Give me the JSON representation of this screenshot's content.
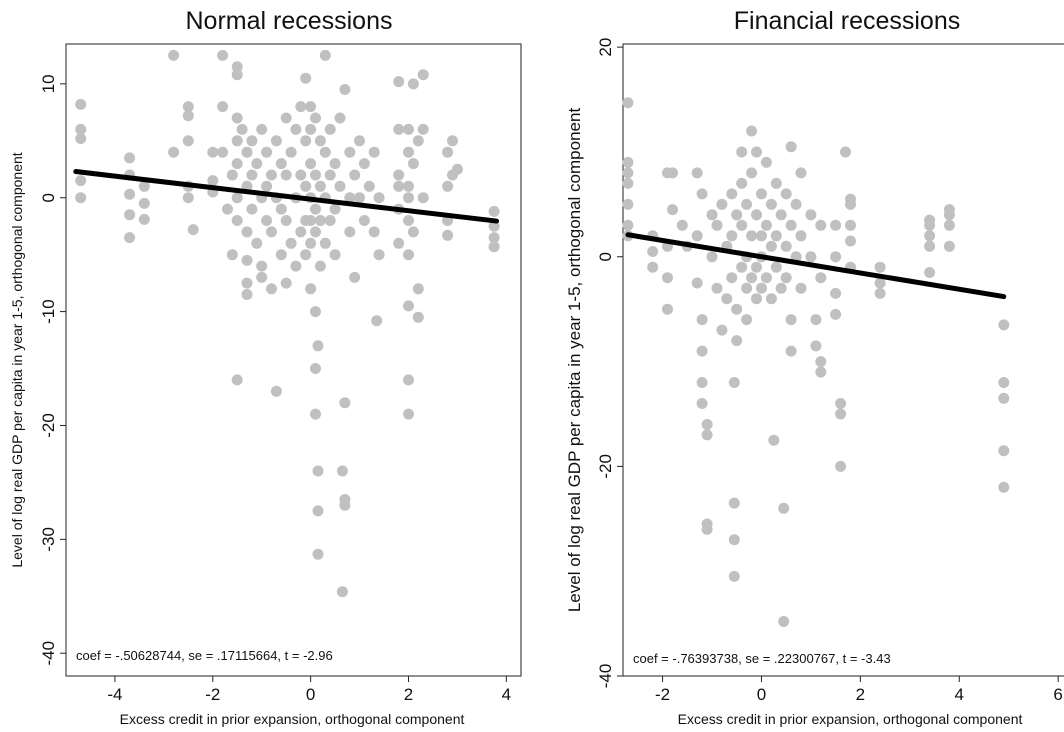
{
  "chart_data": [
    {
      "type": "scatter",
      "title": "Normal recessions",
      "xlabel": "Excess credit in prior expansion, orthogonal component",
      "ylabel": "Level of log real GDP per capita in year 1-5, orthogonal component",
      "xlim": [
        -5,
        4.3
      ],
      "ylim": [
        -42,
        13.5
      ],
      "xticks": [
        "-4",
        "-2",
        "0",
        "2",
        "4"
      ],
      "yticks": [
        "10",
        "0",
        "-10",
        "-20",
        "-30",
        "-40"
      ],
      "grid": false,
      "marker_color": "#c0c0c0",
      "fit_color": "#000000",
      "annotation": "coef = -.50628744, se = .17115664, t = -2.96",
      "fit_line": [
        [
          -4.8,
          2.3
        ],
        [
          3.8,
          -2.05
        ]
      ],
      "points": [
        [
          -4.7,
          8.2
        ],
        [
          -4.7,
          6
        ],
        [
          -4.7,
          5.2
        ],
        [
          -4.7,
          1.5
        ],
        [
          -4.7,
          0.0
        ],
        [
          -3.7,
          3.5
        ],
        [
          -3.7,
          2
        ],
        [
          -3.7,
          0.3
        ],
        [
          -3.7,
          -1.5
        ],
        [
          -3.7,
          -3.5
        ],
        [
          -3.4,
          1
        ],
        [
          -3.4,
          -0.5
        ],
        [
          -3.4,
          -1.9
        ],
        [
          -2.8,
          12.5
        ],
        [
          -2.8,
          4.0
        ],
        [
          -2.5,
          8
        ],
        [
          -2.5,
          7.2
        ],
        [
          -2.5,
          5
        ],
        [
          -2.5,
          1
        ],
        [
          -2.5,
          0
        ],
        [
          -2.4,
          -2.8
        ],
        [
          -2,
          4
        ],
        [
          -2,
          1.5
        ],
        [
          -2,
          0.5
        ],
        [
          -1.8,
          12.5
        ],
        [
          -1.8,
          8
        ],
        [
          -1.8,
          4
        ],
        [
          -1.7,
          -1
        ],
        [
          -1.6,
          2
        ],
        [
          -1.6,
          -5
        ],
        [
          -1.5,
          11.5
        ],
        [
          -1.5,
          10.8
        ],
        [
          -1.5,
          7
        ],
        [
          -1.5,
          5
        ],
        [
          -1.5,
          3
        ],
        [
          -1.5,
          0
        ],
        [
          -1.5,
          -2
        ],
        [
          -1.5,
          -16
        ],
        [
          -1.4,
          6
        ],
        [
          -1.3,
          4
        ],
        [
          -1.3,
          1
        ],
        [
          -1.3,
          -3
        ],
        [
          -1.3,
          -5.5
        ],
        [
          -1.3,
          -7.5
        ],
        [
          -1.3,
          -8.5
        ],
        [
          -1.2,
          5
        ],
        [
          -1.2,
          2
        ],
        [
          -1.2,
          -1
        ],
        [
          -1.1,
          3
        ],
        [
          -1.1,
          -4
        ],
        [
          -1.0,
          6
        ],
        [
          -1.0,
          0
        ],
        [
          -1.0,
          -6
        ],
        [
          -1.0,
          -7
        ],
        [
          -0.9,
          4
        ],
        [
          -0.9,
          1
        ],
        [
          -0.9,
          -2
        ],
        [
          -0.8,
          2
        ],
        [
          -0.8,
          -3
        ],
        [
          -0.8,
          -8
        ],
        [
          -0.7,
          5
        ],
        [
          -0.7,
          0
        ],
        [
          -0.7,
          -17
        ],
        [
          -0.6,
          3
        ],
        [
          -0.6,
          -1
        ],
        [
          -0.6,
          -5
        ],
        [
          -0.5,
          7
        ],
        [
          -0.5,
          2
        ],
        [
          -0.5,
          -2
        ],
        [
          -0.5,
          -7.5
        ],
        [
          -0.4,
          4
        ],
        [
          -0.4,
          -4
        ],
        [
          -0.3,
          6
        ],
        [
          -0.3,
          0
        ],
        [
          -0.3,
          -6
        ],
        [
          -0.2,
          8
        ],
        [
          -0.2,
          2
        ],
        [
          -0.2,
          -3
        ],
        [
          -0.1,
          10.5
        ],
        [
          -0.1,
          5
        ],
        [
          -0.1,
          1
        ],
        [
          -0.1,
          -2
        ],
        [
          -0.1,
          -5
        ],
        [
          0,
          8
        ],
        [
          0,
          6
        ],
        [
          0,
          3
        ],
        [
          0,
          0
        ],
        [
          0,
          -2
        ],
        [
          0,
          -4
        ],
        [
          0,
          -8
        ],
        [
          0.1,
          7
        ],
        [
          0.1,
          2
        ],
        [
          0.1,
          -1
        ],
        [
          0.1,
          -3
        ],
        [
          0.1,
          -10
        ],
        [
          0.1,
          -15
        ],
        [
          0.1,
          -19
        ],
        [
          0.15,
          -13
        ],
        [
          0.15,
          -24
        ],
        [
          0.15,
          -27.5
        ],
        [
          0.15,
          -31.3
        ],
        [
          0.2,
          5
        ],
        [
          0.2,
          1
        ],
        [
          0.2,
          -2
        ],
        [
          0.2,
          -6
        ],
        [
          0.3,
          12.5
        ],
        [
          0.3,
          4
        ],
        [
          0.3,
          0
        ],
        [
          0.3,
          -4
        ],
        [
          0.4,
          6
        ],
        [
          0.4,
          2
        ],
        [
          0.4,
          -2
        ],
        [
          0.5,
          3
        ],
        [
          0.5,
          -1
        ],
        [
          0.5,
          -5
        ],
        [
          0.6,
          7
        ],
        [
          0.6,
          1
        ],
        [
          0.65,
          -24
        ],
        [
          0.65,
          -34.6
        ],
        [
          0.7,
          -18
        ],
        [
          0.7,
          -26.5
        ],
        [
          0.7,
          -27
        ],
        [
          0.7,
          9.5
        ],
        [
          0.8,
          4
        ],
        [
          0.8,
          0
        ],
        [
          0.8,
          -3
        ],
        [
          0.9,
          2
        ],
        [
          0.9,
          -7
        ],
        [
          1.0,
          5
        ],
        [
          1.0,
          0
        ],
        [
          1.1,
          3
        ],
        [
          1.1,
          -2
        ],
        [
          1.2,
          1
        ],
        [
          1.3,
          4
        ],
        [
          1.3,
          -3
        ],
        [
          1.35,
          -10.8
        ],
        [
          1.4,
          0
        ],
        [
          1.4,
          -5
        ],
        [
          1.8,
          6
        ],
        [
          1.8,
          2
        ],
        [
          1.8,
          1
        ],
        [
          1.8,
          -1
        ],
        [
          1.8,
          -4
        ],
        [
          1.8,
          10.2
        ],
        [
          2.0,
          6
        ],
        [
          2.0,
          4
        ],
        [
          2.0,
          1
        ],
        [
          2.0,
          0
        ],
        [
          2.0,
          -2
        ],
        [
          2.0,
          -5
        ],
        [
          2.0,
          -9.5
        ],
        [
          2.0,
          -16
        ],
        [
          2.0,
          -19
        ],
        [
          2.1,
          10
        ],
        [
          2.1,
          3
        ],
        [
          2.1,
          -3
        ],
        [
          2.2,
          5
        ],
        [
          2.2,
          -8
        ],
        [
          2.2,
          -10.5
        ],
        [
          2.3,
          10.8
        ],
        [
          2.3,
          6
        ],
        [
          2.3,
          0
        ],
        [
          2.8,
          4
        ],
        [
          2.8,
          1
        ],
        [
          2.8,
          -2
        ],
        [
          2.8,
          -3.3
        ],
        [
          2.9,
          5
        ],
        [
          2.9,
          2
        ],
        [
          3.0,
          2.5
        ],
        [
          3.75,
          -1.2
        ],
        [
          3.75,
          -2.5
        ],
        [
          3.75,
          -3.5
        ],
        [
          3.75,
          -4.3
        ]
      ]
    },
    {
      "type": "scatter",
      "title": "Financial recessions",
      "xlabel": "Excess credit in prior expansion, orthogonal component",
      "ylabel": "Level of log real GDP per capita in year 1-5, orthogonal component",
      "xlim": [
        -2.8,
        6.3
      ],
      "ylim": [
        -40,
        20.3
      ],
      "xticks": [
        "-2",
        "0",
        "2",
        "4",
        "6"
      ],
      "yticks": [
        "20",
        "0",
        "-20",
        "-40"
      ],
      "grid": false,
      "marker_color": "#c0c0c0",
      "fit_color": "#000000",
      "annotation": "coef = -.76393738, se = .22300767, t = -3.43",
      "fit_line": [
        [
          -2.7,
          2.1
        ],
        [
          4.9,
          -3.8
        ]
      ],
      "points": [
        [
          -2.7,
          14.7
        ],
        [
          -2.7,
          9
        ],
        [
          -2.7,
          8
        ],
        [
          -2.7,
          7
        ],
        [
          -2.7,
          5
        ],
        [
          -2.7,
          3
        ],
        [
          -2.7,
          2
        ],
        [
          -2.2,
          2
        ],
        [
          -2.2,
          0.5
        ],
        [
          -2.2,
          -1
        ],
        [
          -1.9,
          1
        ],
        [
          -1.9,
          -2
        ],
        [
          -1.9,
          -5
        ],
        [
          -1.9,
          8
        ],
        [
          -1.8,
          8
        ],
        [
          -1.8,
          4.5
        ],
        [
          -1.6,
          3
        ],
        [
          -1.5,
          1
        ],
        [
          -1.3,
          8
        ],
        [
          -1.3,
          2
        ],
        [
          -1.3,
          -2.5
        ],
        [
          -1.2,
          6
        ],
        [
          -1.2,
          -6
        ],
        [
          -1.2,
          -9
        ],
        [
          -1.2,
          -12
        ],
        [
          -1.2,
          -14
        ],
        [
          -1.1,
          -16
        ],
        [
          -1.1,
          -17
        ],
        [
          -1.1,
          -25.5
        ],
        [
          -1.1,
          -26
        ],
        [
          -1.0,
          4
        ],
        [
          -1.0,
          0
        ],
        [
          -0.9,
          3
        ],
        [
          -0.9,
          -3
        ],
        [
          -0.8,
          5
        ],
        [
          -0.8,
          -7
        ],
        [
          -0.7,
          1
        ],
        [
          -0.7,
          -4
        ],
        [
          -0.6,
          6
        ],
        [
          -0.6,
          2
        ],
        [
          -0.6,
          -2
        ],
        [
          -0.5,
          4
        ],
        [
          -0.5,
          -5
        ],
        [
          -0.5,
          -8
        ],
        [
          -0.55,
          -12
        ],
        [
          -0.55,
          -23.5
        ],
        [
          -0.55,
          -27
        ],
        [
          -0.55,
          -30.5
        ],
        [
          -0.4,
          10
        ],
        [
          -0.4,
          7
        ],
        [
          -0.4,
          3
        ],
        [
          -0.4,
          -1
        ],
        [
          -0.3,
          5
        ],
        [
          -0.3,
          0
        ],
        [
          -0.3,
          -3
        ],
        [
          -0.3,
          -6
        ],
        [
          -0.2,
          12
        ],
        [
          -0.2,
          8
        ],
        [
          -0.2,
          2
        ],
        [
          -0.2,
          -2
        ],
        [
          -0.1,
          10
        ],
        [
          -0.1,
          4
        ],
        [
          -0.1,
          -1
        ],
        [
          -0.1,
          -4
        ],
        [
          0,
          6
        ],
        [
          0,
          2
        ],
        [
          0,
          0
        ],
        [
          0,
          -3
        ],
        [
          0.1,
          9
        ],
        [
          0.1,
          3
        ],
        [
          0.1,
          -2
        ],
        [
          0.2,
          5
        ],
        [
          0.2,
          1
        ],
        [
          0.2,
          -4
        ],
        [
          0.25,
          -17.5
        ],
        [
          0.3,
          7
        ],
        [
          0.3,
          2
        ],
        [
          0.3,
          -1
        ],
        [
          0.4,
          4
        ],
        [
          0.4,
          -3
        ],
        [
          0.45,
          -24
        ],
        [
          0.45,
          -34.8
        ],
        [
          0.5,
          6
        ],
        [
          0.5,
          1
        ],
        [
          0.5,
          -2
        ],
        [
          0.6,
          10.5
        ],
        [
          0.6,
          3
        ],
        [
          0.6,
          -6
        ],
        [
          0.6,
          -9
        ],
        [
          0.7,
          5
        ],
        [
          0.7,
          0
        ],
        [
          0.8,
          8
        ],
        [
          0.8,
          2
        ],
        [
          0.8,
          -3
        ],
        [
          1.0,
          4
        ],
        [
          1.0,
          0
        ],
        [
          1.1,
          -6
        ],
        [
          1.1,
          -8.5
        ],
        [
          1.2,
          3
        ],
        [
          1.2,
          -2
        ],
        [
          1.2,
          -10
        ],
        [
          1.2,
          -11
        ],
        [
          1.5,
          3
        ],
        [
          1.5,
          0
        ],
        [
          1.5,
          -3.5
        ],
        [
          1.5,
          -5.5
        ],
        [
          1.6,
          -14
        ],
        [
          1.6,
          -15
        ],
        [
          1.6,
          -20
        ],
        [
          1.7,
          10
        ],
        [
          1.8,
          5.5
        ],
        [
          1.8,
          5
        ],
        [
          1.8,
          3
        ],
        [
          1.8,
          1.5
        ],
        [
          1.8,
          -1
        ],
        [
          2.4,
          -1
        ],
        [
          2.4,
          -2.5
        ],
        [
          2.4,
          -3.5
        ],
        [
          3.4,
          3.5
        ],
        [
          3.4,
          3
        ],
        [
          3.4,
          2
        ],
        [
          3.4,
          1
        ],
        [
          3.4,
          -1.5
        ],
        [
          3.8,
          4.5
        ],
        [
          3.8,
          4
        ],
        [
          3.8,
          3
        ],
        [
          3.8,
          1
        ],
        [
          4.9,
          -6.5
        ],
        [
          4.9,
          -12
        ],
        [
          4.9,
          -13.5
        ],
        [
          4.9,
          -18.5
        ],
        [
          4.9,
          -22
        ]
      ]
    }
  ]
}
